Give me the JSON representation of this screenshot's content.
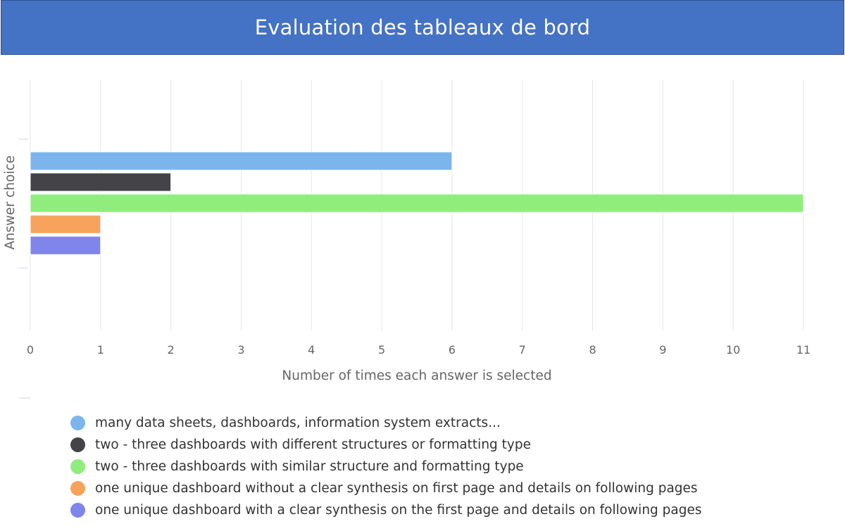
{
  "banner": {
    "title": "Evaluation des tableaux de bord"
  },
  "chart_data": {
    "type": "bar",
    "orientation": "horizontal",
    "title": "",
    "xlabel": "Number of times each answer is selected",
    "ylabel": "Answer choice",
    "xlim": [
      0,
      11
    ],
    "xticks": [
      0,
      1,
      2,
      3,
      4,
      5,
      6,
      7,
      8,
      9,
      10,
      11
    ],
    "grid": true,
    "legend_position": "bottom",
    "series": [
      {
        "name": "many data sheets, dashboards, information system extracts...",
        "value": 6,
        "color": "#7cb5ec"
      },
      {
        "name": "two - three dashboards with different structures or formatting type",
        "value": 2,
        "color": "#434348"
      },
      {
        "name": "two - three dashboards with similar structure and formatting type",
        "value": 11,
        "color": "#90ed7d"
      },
      {
        "name": "one unique dashboard without a clear synthesis on first page and details on following pages",
        "value": 1,
        "color": "#f7a35c"
      },
      {
        "name": "one unique dashboard with a clear synthesis on the first page and details on following pages",
        "value": 1,
        "color": "#8085e9"
      }
    ]
  }
}
